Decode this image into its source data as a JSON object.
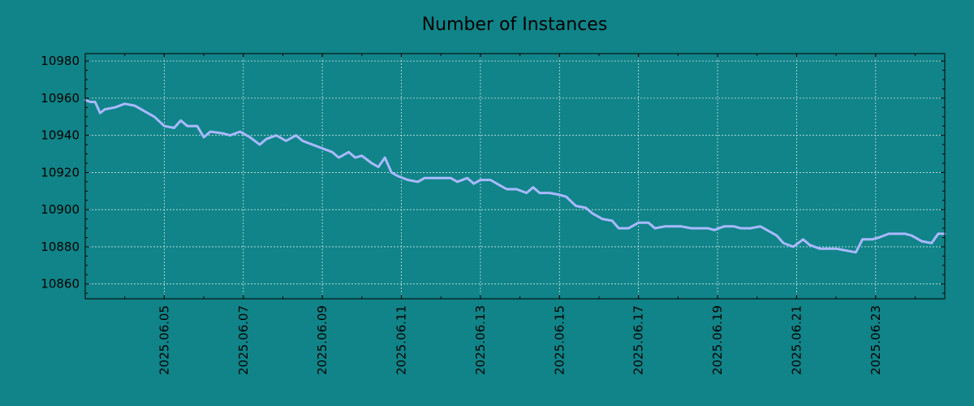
{
  "colors": {
    "background": "#108488",
    "line": "#a9b9ff",
    "axis": "#000000",
    "grid": "#cfe6e6"
  },
  "chart_data": {
    "type": "line",
    "title": "Number of Instances",
    "xlabel": "",
    "ylabel": "",
    "grid": true,
    "xlim": [
      "2025-06-03",
      "2025-06-24.75"
    ],
    "ylim": [
      10852,
      10984
    ],
    "x_ticks": [
      "2025.06.05",
      "2025.06.07",
      "2025.06.09",
      "2025.06.11",
      "2025.06.13",
      "2025.06.15",
      "2025.06.17",
      "2025.06.19",
      "2025.06.21",
      "2025.06.23"
    ],
    "y_ticks": [
      10860,
      10880,
      10900,
      10920,
      10940,
      10960,
      10980
    ],
    "series": [
      {
        "name": "",
        "points": [
          [
            "2025-06-03 00:00",
            10959
          ],
          [
            "2025-06-03 03:00",
            10958
          ],
          [
            "2025-06-03 06:00",
            10958
          ],
          [
            "2025-06-03 09:00",
            10952
          ],
          [
            "2025-06-03 12:00",
            10954
          ],
          [
            "2025-06-03 18:00",
            10955
          ],
          [
            "2025-06-04 00:00",
            10957
          ],
          [
            "2025-06-04 06:00",
            10956
          ],
          [
            "2025-06-04 12:00",
            10953
          ],
          [
            "2025-06-04 18:00",
            10950
          ],
          [
            "2025-06-05 00:00",
            10945
          ],
          [
            "2025-06-05 06:00",
            10944
          ],
          [
            "2025-06-05 10:00",
            10948
          ],
          [
            "2025-06-05 14:00",
            10945
          ],
          [
            "2025-06-05 20:00",
            10945
          ],
          [
            "2025-06-06 00:00",
            10939
          ],
          [
            "2025-06-06 04:00",
            10942
          ],
          [
            "2025-06-06 12:00",
            10941
          ],
          [
            "2025-06-06 16:00",
            10940
          ],
          [
            "2025-06-06 22:00",
            10942
          ],
          [
            "2025-06-07 04:00",
            10939
          ],
          [
            "2025-06-07 10:00",
            10935
          ],
          [
            "2025-06-07 14:00",
            10938
          ],
          [
            "2025-06-07 20:00",
            10940
          ],
          [
            "2025-06-08 02:00",
            10937
          ],
          [
            "2025-06-08 08:00",
            10940
          ],
          [
            "2025-06-08 12:00",
            10937
          ],
          [
            "2025-06-08 18:00",
            10935
          ],
          [
            "2025-06-09 00:00",
            10933
          ],
          [
            "2025-06-09 06:00",
            10931
          ],
          [
            "2025-06-09 10:00",
            10928
          ],
          [
            "2025-06-09 16:00",
            10931
          ],
          [
            "2025-06-09 20:00",
            10928
          ],
          [
            "2025-06-10 00:00",
            10929
          ],
          [
            "2025-06-10 06:00",
            10925
          ],
          [
            "2025-06-10 10:00",
            10923
          ],
          [
            "2025-06-10 14:00",
            10928
          ],
          [
            "2025-06-10 18:00",
            10920
          ],
          [
            "2025-06-10 22:00",
            10918
          ],
          [
            "2025-06-11 04:00",
            10916
          ],
          [
            "2025-06-11 10:00",
            10915
          ],
          [
            "2025-06-11 14:00",
            10917
          ],
          [
            "2025-06-11 20:00",
            10917
          ],
          [
            "2025-06-12 00:00",
            10917
          ],
          [
            "2025-06-12 06:00",
            10917
          ],
          [
            "2025-06-12 10:00",
            10915
          ],
          [
            "2025-06-12 16:00",
            10917
          ],
          [
            "2025-06-12 20:00",
            10914
          ],
          [
            "2025-06-13 00:00",
            10916
          ],
          [
            "2025-06-13 06:00",
            10916
          ],
          [
            "2025-06-13 12:00",
            10913
          ],
          [
            "2025-06-13 16:00",
            10911
          ],
          [
            "2025-06-13 22:00",
            10911
          ],
          [
            "2025-06-14 04:00",
            10909
          ],
          [
            "2025-06-14 08:00",
            10912
          ],
          [
            "2025-06-14 12:00",
            10909
          ],
          [
            "2025-06-14 18:00",
            10909
          ],
          [
            "2025-06-15 00:00",
            10908
          ],
          [
            "2025-06-15 04:00",
            10907
          ],
          [
            "2025-06-15 10:00",
            10902
          ],
          [
            "2025-06-15 16:00",
            10901
          ],
          [
            "2025-06-15 20:00",
            10898
          ],
          [
            "2025-06-16 02:00",
            10895
          ],
          [
            "2025-06-16 08:00",
            10894
          ],
          [
            "2025-06-16 12:00",
            10890
          ],
          [
            "2025-06-16 18:00",
            10890
          ],
          [
            "2025-06-17 00:00",
            10893
          ],
          [
            "2025-06-17 06:00",
            10893
          ],
          [
            "2025-06-17 10:00",
            10890
          ],
          [
            "2025-06-17 16:00",
            10891
          ],
          [
            "2025-06-17 20:00",
            10891
          ],
          [
            "2025-06-18 02:00",
            10891
          ],
          [
            "2025-06-18 08:00",
            10890
          ],
          [
            "2025-06-18 12:00",
            10890
          ],
          [
            "2025-06-18 18:00",
            10890
          ],
          [
            "2025-06-18 22:00",
            10889
          ],
          [
            "2025-06-19 04:00",
            10891
          ],
          [
            "2025-06-19 10:00",
            10891
          ],
          [
            "2025-06-19 14:00",
            10890
          ],
          [
            "2025-06-19 20:00",
            10890
          ],
          [
            "2025-06-20 02:00",
            10891
          ],
          [
            "2025-06-20 06:00",
            10889
          ],
          [
            "2025-06-20 12:00",
            10886
          ],
          [
            "2025-06-20 16:00",
            10882
          ],
          [
            "2025-06-20 22:00",
            10880
          ],
          [
            "2025-06-21 04:00",
            10884
          ],
          [
            "2025-06-21 08:00",
            10881
          ],
          [
            "2025-06-21 14:00",
            10879
          ],
          [
            "2025-06-21 20:00",
            10879
          ],
          [
            "2025-06-22 00:00",
            10879
          ],
          [
            "2025-06-22 06:00",
            10878
          ],
          [
            "2025-06-22 12:00",
            10877
          ],
          [
            "2025-06-22 16:00",
            10884
          ],
          [
            "2025-06-22 22:00",
            10884
          ],
          [
            "2025-06-23 02:00",
            10885
          ],
          [
            "2025-06-23 08:00",
            10887
          ],
          [
            "2025-06-23 12:00",
            10887
          ],
          [
            "2025-06-23 18:00",
            10887
          ],
          [
            "2025-06-23 22:00",
            10886
          ],
          [
            "2025-06-24 04:00",
            10883
          ],
          [
            "2025-06-24 10:00",
            10882
          ],
          [
            "2025-06-24 14:00",
            10887
          ],
          [
            "2025-06-24 18:00",
            10887
          ]
        ]
      }
    ]
  }
}
